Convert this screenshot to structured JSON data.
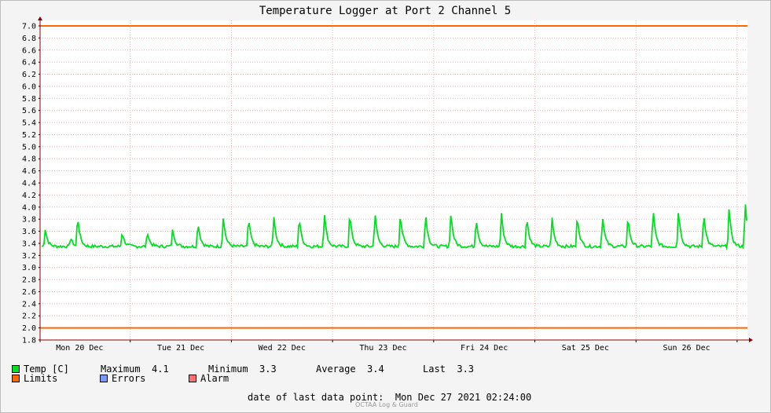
{
  "chart_data": {
    "type": "line",
    "title": "Temperature Logger at Port 2 Channel 5",
    "ylim": [
      1.8,
      7.0
    ],
    "yticks": [
      "7.0",
      "6.8",
      "6.6",
      "6.4",
      "6.2",
      "6.0",
      "5.8",
      "5.6",
      "5.4",
      "5.2",
      "5.0",
      "4.8",
      "4.6",
      "4.4",
      "4.2",
      "4.0",
      "3.8",
      "3.6",
      "3.4",
      "3.2",
      "3.0",
      "2.8",
      "2.6",
      "2.4",
      "2.2",
      "2.0",
      "1.8"
    ],
    "xticks": [
      "Mon 20 Dec",
      "Tue 21 Dec",
      "Wed 22 Dec",
      "Thu 23 Dec",
      "Fri 24 Dec",
      "Sat 25 Dec",
      "Sun 26 Dec"
    ],
    "grid": true,
    "limits": {
      "upper": 7.0,
      "lower": 2.0
    },
    "series": [
      {
        "name": "Temp [C]",
        "baseline": 3.35,
        "peaks": [
          {
            "day": 0.16,
            "value": 3.65
          },
          {
            "day": 0.41,
            "value": 3.5
          },
          {
            "day": 0.48,
            "value": 3.87
          },
          {
            "day": 0.92,
            "value": 3.6
          },
          {
            "day": 1.17,
            "value": 3.6
          },
          {
            "day": 1.42,
            "value": 3.65
          },
          {
            "day": 1.67,
            "value": 3.77
          },
          {
            "day": 1.92,
            "value": 3.86
          },
          {
            "day": 2.17,
            "value": 3.84
          },
          {
            "day": 2.42,
            "value": 3.86
          },
          {
            "day": 2.67,
            "value": 3.86
          },
          {
            "day": 2.92,
            "value": 3.92
          },
          {
            "day": 3.17,
            "value": 3.92
          },
          {
            "day": 3.42,
            "value": 3.93
          },
          {
            "day": 3.67,
            "value": 3.92
          },
          {
            "day": 3.92,
            "value": 3.92
          },
          {
            "day": 4.17,
            "value": 3.93
          },
          {
            "day": 4.42,
            "value": 3.85
          },
          {
            "day": 4.67,
            "value": 3.91
          },
          {
            "day": 4.92,
            "value": 3.87
          },
          {
            "day": 5.17,
            "value": 3.83
          },
          {
            "day": 5.42,
            "value": 3.89
          },
          {
            "day": 5.67,
            "value": 3.87
          },
          {
            "day": 5.92,
            "value": 3.86
          },
          {
            "day": 6.17,
            "value": 3.97
          },
          {
            "day": 6.42,
            "value": 3.99
          },
          {
            "day": 6.67,
            "value": 3.94
          },
          {
            "day": 6.92,
            "value": 3.99
          },
          {
            "day": 7.08,
            "value": 4.1
          }
        ]
      }
    ]
  },
  "legend": {
    "temp_label": "Temp [C]",
    "max_label": "Maximum",
    "max_value": "4.1",
    "min_label": "Minimum",
    "min_value": "3.3",
    "avg_label": "Average",
    "avg_value": "3.4",
    "last_label": "Last",
    "last_value": "3.3",
    "limits_label": "Limits",
    "errors_label": "Errors",
    "alarm_label": "Alarm"
  },
  "colors": {
    "temp": "#00e020",
    "limits": "#ff6600",
    "errors": "#7799ff",
    "alarm": "#ff7070",
    "axis": "#8b0000"
  },
  "footer": {
    "last_point_label": "date of last data point:",
    "last_point_value": "Mon Dec 27 2021 02:24:00",
    "credit": "OCTAA Log & Guard"
  }
}
